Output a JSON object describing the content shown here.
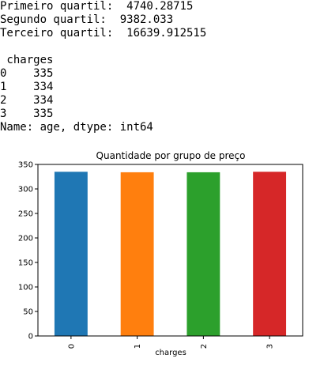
{
  "output": {
    "quartile_lines": [
      "Primeiro quartil:  4740.28715",
      "Segundo quartil:  9382.033",
      "Terceiro quartil:  16639.912515"
    ],
    "series_header": " charges",
    "series_rows": [
      "0    335",
      "1    334",
      "2    334",
      "3    335"
    ],
    "series_footer": "Name: age, dtype: int64"
  },
  "chart_data": {
    "type": "bar",
    "title": "Quantidade por grupo de preço",
    "xlabel": "charges",
    "ylabel": "",
    "categories": [
      "0",
      "1",
      "2",
      "3"
    ],
    "values": [
      335,
      334,
      334,
      335
    ],
    "ylim": [
      0,
      350
    ],
    "yticks": [
      0,
      50,
      100,
      150,
      200,
      250,
      300,
      350
    ],
    "colors": [
      "#1f77b4",
      "#ff7f0e",
      "#2ca02c",
      "#d62728"
    ],
    "grid": false,
    "legend": "none"
  }
}
